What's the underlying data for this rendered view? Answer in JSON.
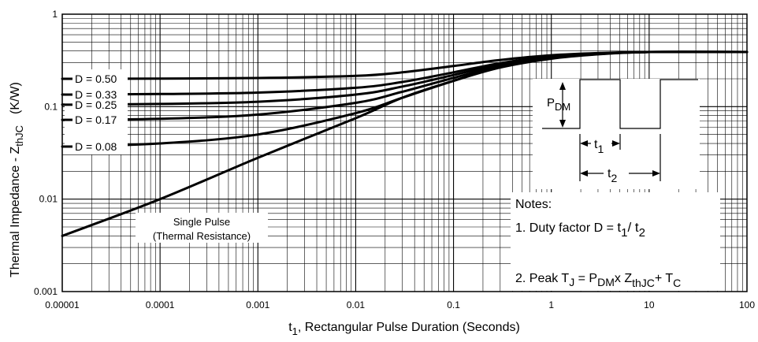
{
  "chart_data": {
    "type": "line",
    "xscale": "log",
    "yscale": "log",
    "xlim": [
      1e-05,
      100
    ],
    "ylim": [
      0.001,
      1
    ],
    "grid": true,
    "xlabel_main": "t",
    "xlabel_sub": "1",
    "xlabel_rest": ",  Rectangular Pulse Duration (Seconds)",
    "ylabel_main": "Thermal Impedance - Z",
    "ylabel_sub": "thJC",
    "ylabel_unit": "(K/W)",
    "x_ticks": [
      {
        "value": 1e-05,
        "label": "0.00001"
      },
      {
        "value": 0.0001,
        "label": "0.0001"
      },
      {
        "value": 0.001,
        "label": "0.001"
      },
      {
        "value": 0.01,
        "label": "0.01"
      },
      {
        "value": 0.1,
        "label": "0.1"
      },
      {
        "value": 1,
        "label": "1"
      },
      {
        "value": 10,
        "label": "10"
      },
      {
        "value": 100,
        "label": "100"
      }
    ],
    "y_ticks": [
      {
        "value": 0.001,
        "label": "0.001"
      },
      {
        "value": 0.01,
        "label": "0.01"
      },
      {
        "value": 0.1,
        "label": "0.1"
      },
      {
        "value": 1,
        "label": "1"
      }
    ],
    "series": [
      {
        "name": "D = 0.50",
        "x": [
          1e-05,
          0.0001,
          0.001,
          0.01,
          0.03,
          0.1,
          0.3,
          1,
          3,
          10,
          100
        ],
        "y": [
          0.2,
          0.201,
          0.204,
          0.215,
          0.235,
          0.275,
          0.32,
          0.36,
          0.38,
          0.39,
          0.39
        ]
      },
      {
        "name": "D = 0.33",
        "x": [
          1e-05,
          0.0001,
          0.001,
          0.01,
          0.03,
          0.1,
          0.3,
          1,
          3,
          10,
          100
        ],
        "y": [
          0.135,
          0.137,
          0.142,
          0.16,
          0.185,
          0.235,
          0.295,
          0.35,
          0.375,
          0.39,
          0.39
        ]
      },
      {
        "name": "D = 0.25",
        "x": [
          1e-05,
          0.0001,
          0.001,
          0.01,
          0.03,
          0.1,
          0.3,
          1,
          3,
          10,
          100
        ],
        "y": [
          0.105,
          0.107,
          0.113,
          0.135,
          0.165,
          0.22,
          0.285,
          0.345,
          0.375,
          0.39,
          0.39
        ]
      },
      {
        "name": "D = 0.17",
        "x": [
          1e-05,
          0.0001,
          0.001,
          0.01,
          0.03,
          0.1,
          0.3,
          1,
          3,
          10,
          100
        ],
        "y": [
          0.072,
          0.074,
          0.082,
          0.11,
          0.145,
          0.205,
          0.275,
          0.34,
          0.372,
          0.39,
          0.39
        ]
      },
      {
        "name": "D = 0.08",
        "x": [
          1e-05,
          0.0001,
          0.001,
          0.01,
          0.03,
          0.1,
          0.3,
          1,
          3,
          10,
          100
        ],
        "y": [
          0.037,
          0.04,
          0.05,
          0.085,
          0.125,
          0.19,
          0.27,
          0.335,
          0.37,
          0.39,
          0.39
        ]
      },
      {
        "name": "Single Pulse (Thermal Resistance)",
        "x": [
          1e-05,
          0.0001,
          0.001,
          0.01,
          0.03,
          0.1,
          0.3,
          1,
          3,
          10,
          100
        ],
        "y": [
          0.004,
          0.01,
          0.028,
          0.075,
          0.125,
          0.19,
          0.265,
          0.33,
          0.368,
          0.39,
          0.39
        ]
      }
    ],
    "legend_labels": [
      "D = 0.50",
      "D = 0.33",
      "D = 0.25",
      "D = 0.17",
      "D = 0.08"
    ],
    "single_pulse_label_1": "Single Pulse",
    "single_pulse_label_2": "(Thermal Resistance)",
    "inset": {
      "p_main": "P",
      "p_sub": "DM",
      "t1_main": "t",
      "t1_sub": "1",
      "t2_main": "t",
      "t2_sub": "2"
    },
    "notes": {
      "title": "Notes:",
      "note1_prefix": "1. Duty factor D = ",
      "note1_t1": "t",
      "note1_t1_sub": "1",
      "note1_slash": "/ t",
      "note1_t2_sub": "2",
      "note2_prefix": "2. Peak T",
      "note2_j_sub": "J",
      "note2_eq": " = P",
      "note2_dm_sub": "DM",
      "note2_x": "x Z",
      "note2_thjc_sub": "thJC",
      "note2_plus": "+ T",
      "note2_c_sub": "C"
    }
  }
}
